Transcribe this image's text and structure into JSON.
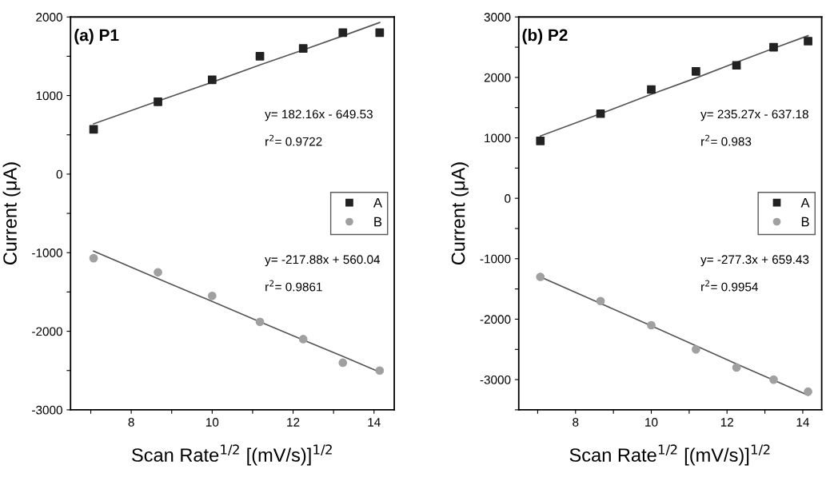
{
  "chart_data": [
    {
      "type": "scatter",
      "title": "(a) P1",
      "xlabel": "Scan Rate$^{1/2}$ [(mV/s)]$^{1/2}$",
      "ylabel": "Current (μA)",
      "x": [
        7.07,
        8.66,
        10,
        11.18,
        12.25,
        13.23,
        14.14
      ],
      "series": [
        {
          "name": "A",
          "color": "#222222",
          "marker": "square",
          "values": [
            570,
            920,
            1200,
            1500,
            1600,
            1800,
            1800
          ]
        },
        {
          "name": "B",
          "color": "#a0a0a0",
          "marker": "circle",
          "values": [
            -1070,
            -1250,
            -1550,
            -1880,
            -2100,
            -2400,
            -2500
          ]
        },
        {
          "type": "line",
          "color": "#555555",
          "values": [
            640,
            930,
            1170,
            1390,
            1580,
            1760,
            1930
          ]
        },
        {
          "type": "line",
          "color": "#555555",
          "values": [
            -980,
            -1330,
            -1620,
            -1880,
            -2110,
            -2320,
            -2520
          ]
        }
      ],
      "annotations": [
        "y= 182.16x - 649.53",
        "r$^{2}$= 0.9722",
        "y= -217.88x + 560.04",
        "r$^{2}$= 0.9861"
      ],
      "xlim": [
        6.5,
        14.5
      ],
      "xticks": [
        {
          "value": 7,
          "label": null
        },
        8,
        {
          "value": 9,
          "label": null
        },
        10,
        {
          "value": 11,
          "label": null
        },
        12,
        {
          "value": 13,
          "label": null
        },
        14
      ],
      "ylim": [
        -3000,
        2000
      ],
      "yticks": [
        -3000,
        {
          "value": -2500,
          "label": null
        },
        -2000,
        {
          "value": -1500,
          "label": null
        },
        -1000,
        {
          "value": -500,
          "label": null
        },
        0,
        {
          "value": 500,
          "label": null
        },
        1000,
        {
          "value": 1500,
          "label": null
        },
        2000
      ],
      "legend": "center right",
      "grid": false
    },
    {
      "type": "scatter",
      "title": "(b) P2",
      "xlabel": "Scan Rate$^{1/2}$ [(mV/s)]$^{1/2}$",
      "ylabel": "Current (μA)",
      "x": [
        7.07,
        8.66,
        10,
        11.18,
        12.25,
        13.23,
        14.14
      ],
      "series": [
        {
          "name": "A",
          "color": "#222222",
          "marker": "square",
          "values": [
            950,
            1400,
            1800,
            2100,
            2200,
            2500,
            2600
          ]
        },
        {
          "name": "B",
          "color": "#a0a0a0",
          "marker": "circle",
          "values": [
            -1300,
            -1700,
            -2100,
            -2500,
            -2800,
            -3000,
            -3200
          ]
        },
        {
          "type": "line",
          "color": "#555555",
          "values": [
            1030,
            1400,
            1720,
            1990,
            2250,
            2480,
            2690
          ]
        },
        {
          "type": "line",
          "color": "#555555",
          "values": [
            -1300,
            -1740,
            -2110,
            -2440,
            -2740,
            -3010,
            -3260
          ]
        }
      ],
      "annotations": [
        "y= 235.27x - 637.18",
        "r$^{2}$= 0.983",
        "y= -277.3x + 659.43",
        "r$^{2}$= 0.9954"
      ],
      "xlim": [
        6.5,
        14.5
      ],
      "xticks": [
        {
          "value": 7,
          "label": null
        },
        8,
        {
          "value": 9,
          "label": null
        },
        10,
        {
          "value": 11,
          "label": null
        },
        12,
        {
          "value": 13,
          "label": null
        },
        14
      ],
      "ylim": [
        -3500,
        3000
      ],
      "yticks": [
        {
          "value": -3500,
          "label": null
        },
        -3000,
        {
          "value": -2500,
          "label": null
        },
        -2000,
        {
          "value": -1500,
          "label": null
        },
        -1000,
        {
          "value": -500,
          "label": null
        },
        0,
        {
          "value": 500,
          "label": null
        },
        1000,
        {
          "value": 1500,
          "label": null
        },
        2000,
        {
          "value": 2500,
          "label": null
        },
        3000
      ],
      "legend": "center right",
      "grid": false
    }
  ]
}
